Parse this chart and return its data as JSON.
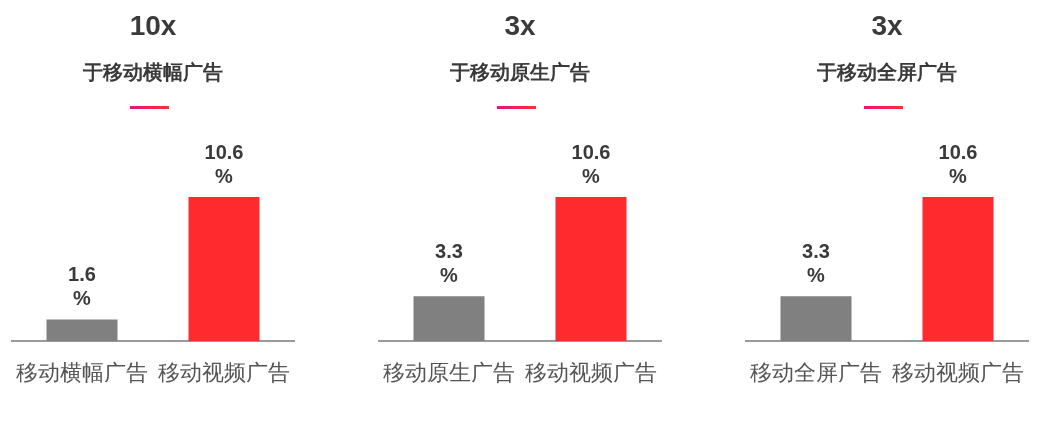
{
  "chart_data": [
    {
      "type": "bar",
      "title": "10x",
      "subtitle": "于移动横幅广告",
      "categories": [
        "移动横幅广告",
        "移动视频广告"
      ],
      "values": [
        1.6,
        10.6
      ],
      "colors": [
        "#808080",
        "#ff2a2d"
      ],
      "value_labels": [
        "1.6\n%",
        "10.6\n%"
      ],
      "tick_labels": "x"
    },
    {
      "type": "bar",
      "title": "3x",
      "subtitle": "于移动原生广告",
      "categories": [
        "移动原生广告",
        "移动视频广告"
      ],
      "values": [
        3.3,
        10.6
      ],
      "colors": [
        "#808080",
        "#ff2a2d"
      ],
      "value_labels": [
        "3.3\n%",
        "10.6\n%"
      ],
      "tick_labels": "x"
    },
    {
      "type": "bar",
      "title": "3x",
      "subtitle": "于移动全屏广告",
      "categories": [
        "移动全屏广告",
        "移动视频广告"
      ],
      "values": [
        3.3,
        10.6
      ],
      "colors": [
        "#808080",
        "#ff2a2d"
      ],
      "value_labels": [
        "3.3\n%",
        "10.6\n%"
      ],
      "tick_labels": "x"
    }
  ]
}
